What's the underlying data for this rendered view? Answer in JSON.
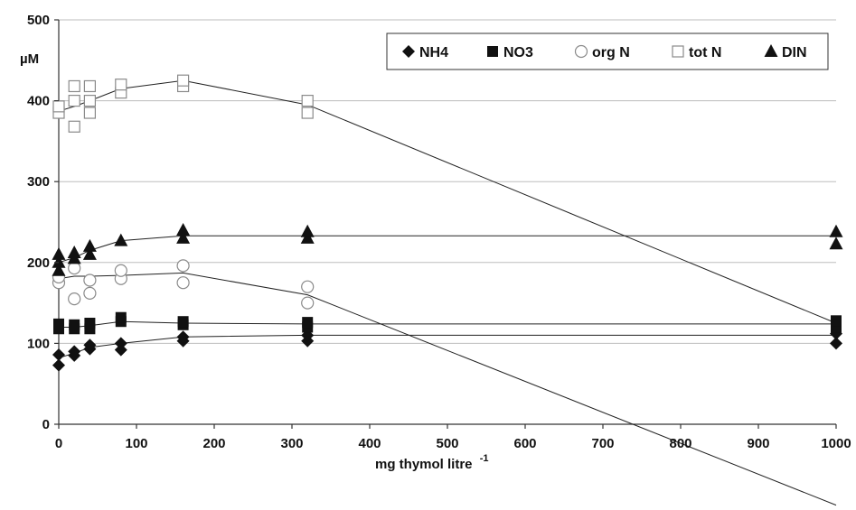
{
  "chart_data": {
    "type": "scatter",
    "title": "",
    "ylabel": "µM",
    "xlabel_main": "mg thymol litre",
    "xlabel_sup": "-1",
    "xlim": [
      0,
      1000
    ],
    "ylim": [
      0,
      500
    ],
    "x_ticks": [
      0,
      100,
      200,
      300,
      400,
      500,
      600,
      700,
      800,
      900,
      1000
    ],
    "x_tick_labels": [
      "0",
      "100",
      "200",
      "300",
      "400",
      "500",
      "600",
      "700",
      "800",
      "900",
      "1000"
    ],
    "y_ticks": [
      0,
      100,
      200,
      300,
      400,
      500
    ],
    "y_tick_labels": [
      "0",
      "100",
      "200",
      "300",
      "400",
      "500"
    ],
    "grid": "horizontal",
    "legend_position": "top-right",
    "series": [
      {
        "name": "NH4",
        "marker": "diamond",
        "points": [
          [
            0,
            73
          ],
          [
            0,
            86
          ],
          [
            20,
            85
          ],
          [
            20,
            90
          ],
          [
            40,
            93
          ],
          [
            40,
            98
          ],
          [
            80,
            92
          ],
          [
            80,
            100
          ],
          [
            160,
            103
          ],
          [
            160,
            108
          ],
          [
            320,
            103
          ],
          [
            320,
            110
          ],
          [
            1000,
            100
          ],
          [
            1000,
            112
          ]
        ],
        "line": [
          [
            0,
            82
          ],
          [
            20,
            88
          ],
          [
            40,
            95
          ],
          [
            80,
            100
          ],
          [
            160,
            108
          ],
          [
            320,
            110
          ],
          [
            1000,
            110
          ]
        ]
      },
      {
        "name": "NO3",
        "marker": "square-filled",
        "points": [
          [
            0,
            118
          ],
          [
            0,
            124
          ],
          [
            20,
            118
          ],
          [
            20,
            123
          ],
          [
            40,
            118
          ],
          [
            40,
            125
          ],
          [
            80,
            127
          ],
          [
            80,
            132
          ],
          [
            160,
            123
          ],
          [
            160,
            127
          ],
          [
            320,
            120
          ],
          [
            320,
            126
          ],
          [
            1000,
            120
          ],
          [
            1000,
            128
          ]
        ],
        "line": [
          [
            0,
            120
          ],
          [
            20,
            120
          ],
          [
            40,
            122
          ],
          [
            80,
            127
          ],
          [
            160,
            125
          ],
          [
            320,
            124
          ],
          [
            1000,
            124
          ]
        ]
      },
      {
        "name": "org N",
        "marker": "circle-open",
        "points": [
          [
            0,
            175
          ],
          [
            0,
            182
          ],
          [
            20,
            155
          ],
          [
            20,
            193
          ],
          [
            40,
            162
          ],
          [
            40,
            178
          ],
          [
            80,
            180
          ],
          [
            80,
            190
          ],
          [
            160,
            175
          ],
          [
            160,
            196
          ],
          [
            320,
            150
          ],
          [
            320,
            170
          ]
        ],
        "line": [
          [
            0,
            180
          ],
          [
            20,
            183
          ],
          [
            40,
            183
          ],
          [
            80,
            184
          ],
          [
            160,
            187
          ],
          [
            320,
            160
          ],
          [
            1000,
            -100
          ]
        ]
      },
      {
        "name": "tot N",
        "marker": "square-open",
        "points": [
          [
            0,
            385
          ],
          [
            0,
            393
          ],
          [
            20,
            368
          ],
          [
            20,
            400
          ],
          [
            20,
            418
          ],
          [
            40,
            385
          ],
          [
            40,
            400
          ],
          [
            40,
            418
          ],
          [
            80,
            410
          ],
          [
            80,
            420
          ],
          [
            160,
            418
          ],
          [
            160,
            425
          ],
          [
            320,
            385
          ],
          [
            320,
            400
          ]
        ],
        "line": [
          [
            0,
            387
          ],
          [
            20,
            393
          ],
          [
            40,
            400
          ],
          [
            80,
            415
          ],
          [
            160,
            425
          ],
          [
            320,
            395
          ],
          [
            1000,
            125
          ]
        ]
      },
      {
        "name": "DIN",
        "marker": "triangle-filled",
        "points": [
          [
            0,
            190
          ],
          [
            0,
            200
          ],
          [
            0,
            210
          ],
          [
            20,
            205
          ],
          [
            20,
            212
          ],
          [
            40,
            210
          ],
          [
            40,
            220
          ],
          [
            80,
            227
          ],
          [
            160,
            230
          ],
          [
            160,
            240
          ],
          [
            320,
            230
          ],
          [
            320,
            238
          ],
          [
            1000,
            223
          ],
          [
            1000,
            238
          ]
        ],
        "line": [
          [
            0,
            200
          ],
          [
            20,
            206
          ],
          [
            40,
            215
          ],
          [
            80,
            227
          ],
          [
            160,
            233
          ],
          [
            320,
            233
          ],
          [
            1000,
            233
          ]
        ]
      }
    ]
  }
}
